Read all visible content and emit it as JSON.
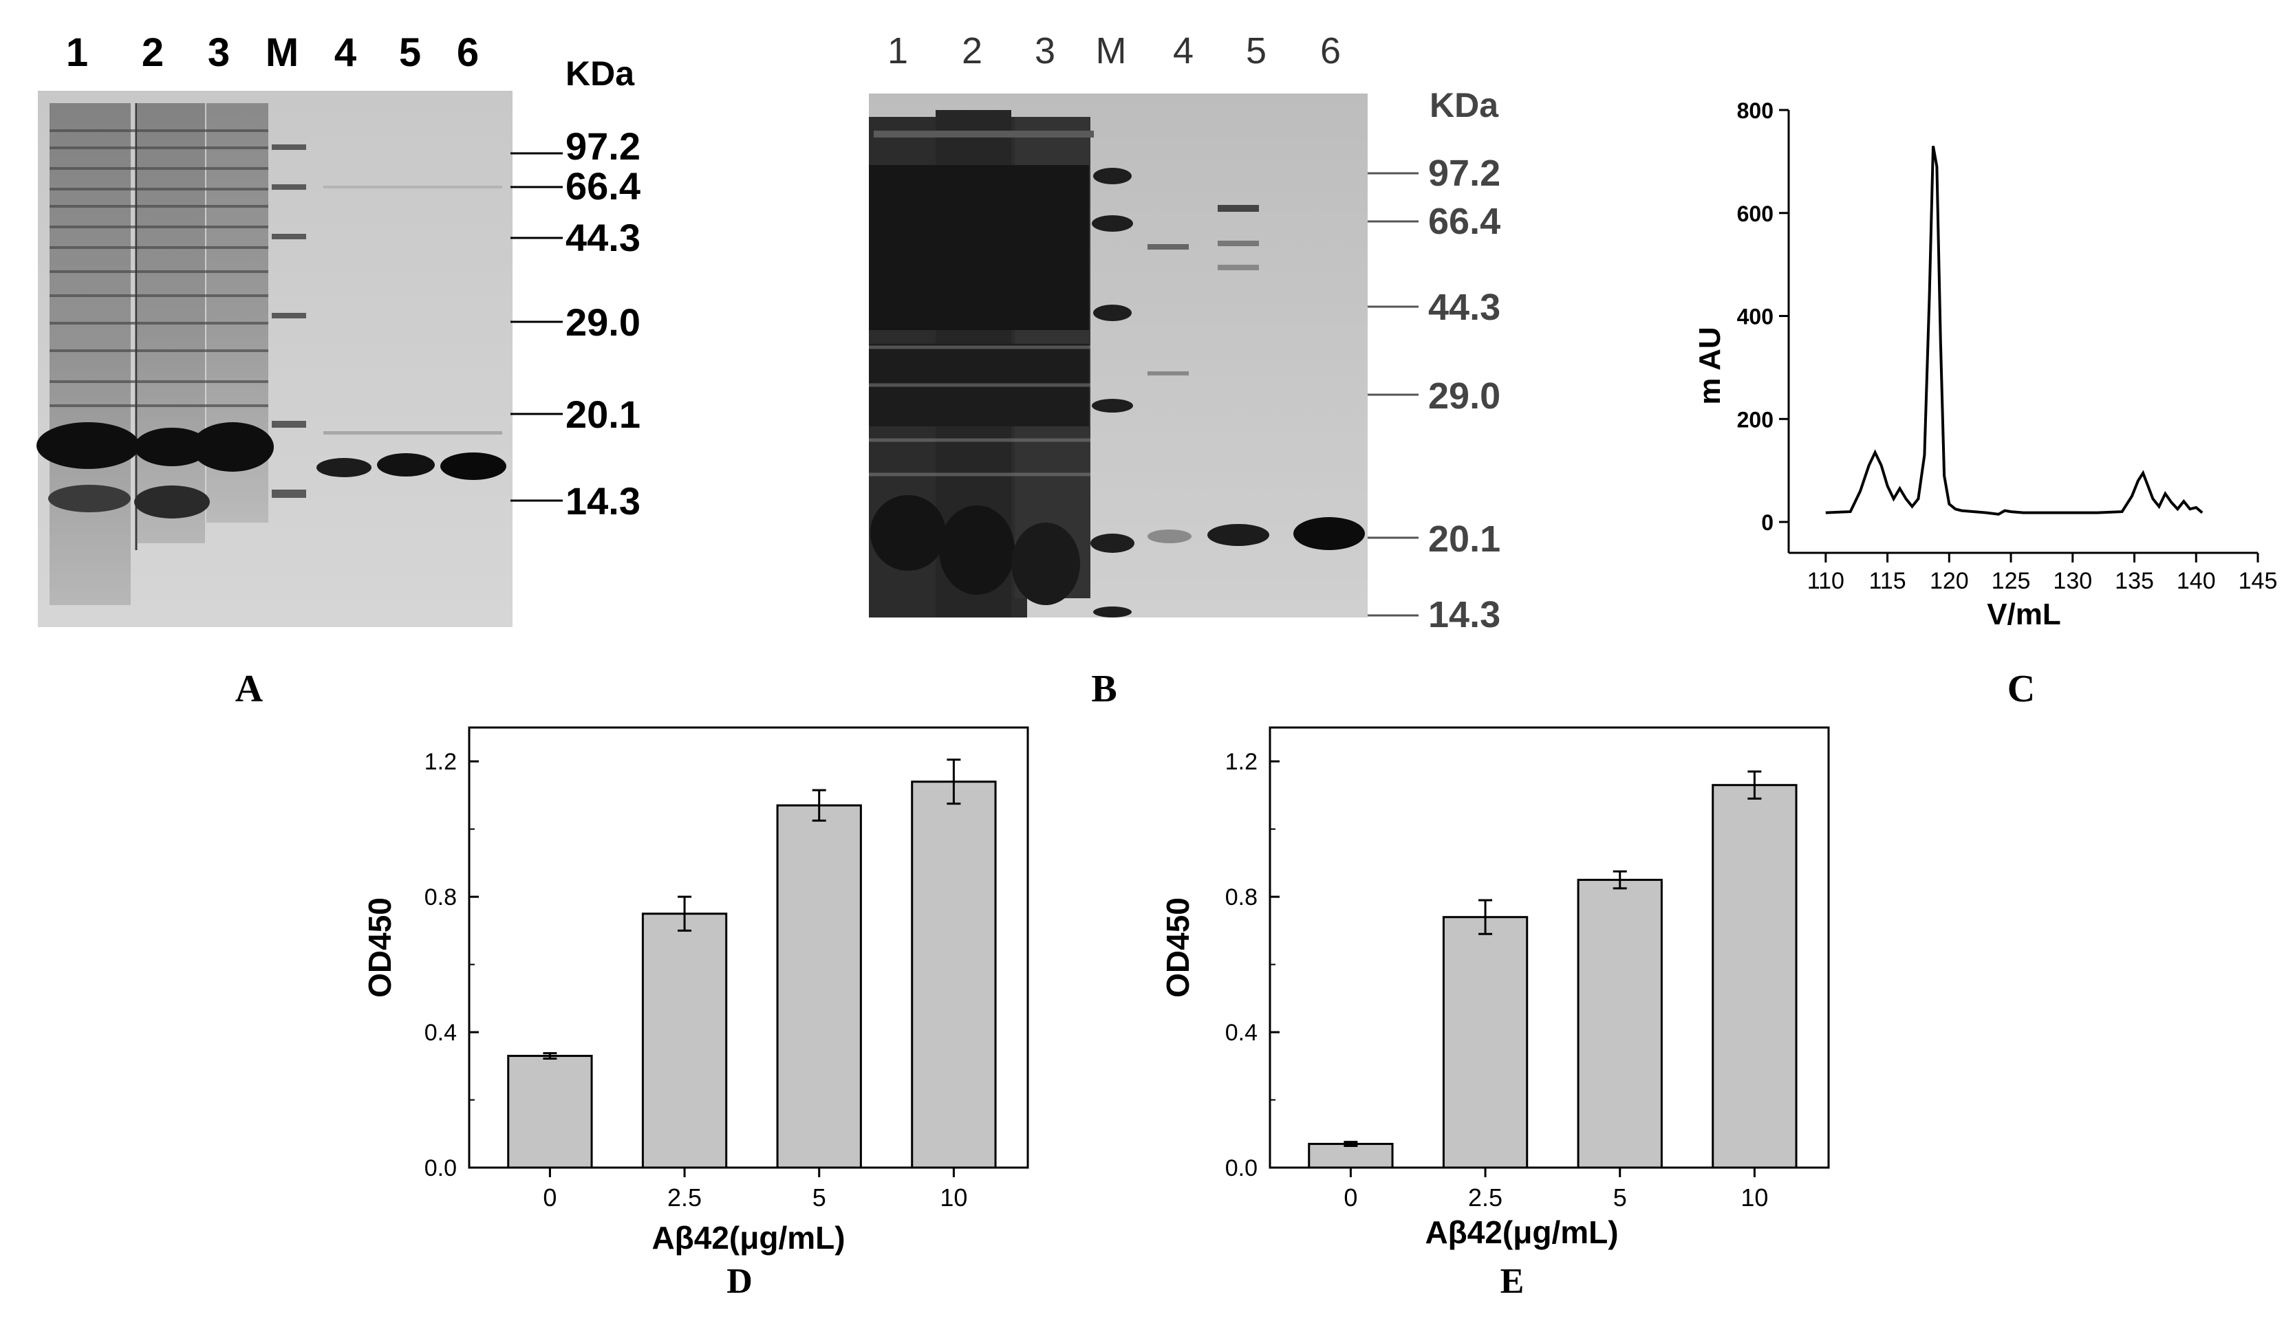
{
  "panels": {
    "A": {
      "caption": "A",
      "lane_labels": [
        "1",
        "2",
        "3",
        "M",
        "4",
        "5",
        "6"
      ],
      "unit_label": "KDa",
      "markers": [
        "97.2",
        "66.4",
        "44.3",
        "29.0",
        "20.1",
        "14.3"
      ]
    },
    "B": {
      "caption": "B",
      "lane_labels": [
        "1",
        "2",
        "3",
        "M",
        "4",
        "5",
        "6"
      ],
      "unit_label": "KDa",
      "markers": [
        "97.2",
        "66.4",
        "44.3",
        "29.0",
        "20.1",
        "14.3"
      ]
    },
    "C": {
      "caption": "C"
    },
    "D": {
      "caption": "D"
    },
    "E": {
      "caption": "E"
    }
  },
  "chart_data": [
    {
      "id": "C",
      "type": "line",
      "title": "",
      "xlabel": "V/mL",
      "ylabel": "m AU",
      "xlim": [
        107,
        145
      ],
      "ylim": [
        -60,
        800
      ],
      "xticks": [
        110,
        115,
        120,
        125,
        130,
        135,
        140,
        145
      ],
      "yticks": [
        0,
        200,
        400,
        600,
        800
      ],
      "series": [
        {
          "x": [
            110,
            112,
            112.8,
            113.5,
            114.0,
            114.5,
            115.0,
            115.5,
            116.0,
            116.5,
            117.0,
            117.5,
            118.0,
            118.4,
            118.7,
            119.0,
            119.3,
            119.6,
            120.0,
            120.5,
            121,
            122,
            123,
            124,
            124.5,
            125,
            126,
            128,
            130,
            132,
            134,
            134.8,
            135.3,
            135.7,
            136.1,
            136.5,
            137.0,
            137.5,
            138.0,
            138.5,
            139.0,
            139.5,
            140.0,
            140.5
          ],
          "y": [
            18,
            20,
            60,
            110,
            135,
            110,
            70,
            45,
            65,
            45,
            30,
            45,
            130,
            440,
            730,
            690,
            350,
            90,
            35,
            25,
            22,
            20,
            18,
            15,
            22,
            20,
            18,
            18,
            18,
            18,
            20,
            50,
            80,
            95,
            70,
            45,
            30,
            55,
            38,
            25,
            40,
            25,
            28,
            18
          ]
        }
      ]
    },
    {
      "id": "D",
      "type": "bar",
      "title": "",
      "xlabel": "Aβ42(μg/mL)",
      "ylabel": "OD450",
      "categories": [
        "0",
        "2.5",
        "5",
        "10"
      ],
      "values": [
        0.33,
        0.75,
        1.07,
        1.14
      ],
      "errors": [
        0.008,
        0.05,
        0.045,
        0.065
      ],
      "ylim": [
        0.0,
        1.3
      ],
      "yticks": [
        "0.0",
        "0.4",
        "0.8",
        "1.2"
      ]
    },
    {
      "id": "E",
      "type": "bar",
      "title": "",
      "xlabel": "Aβ42(μg/mL)",
      "ylabel": "OD450",
      "categories": [
        "0",
        "2.5",
        "5",
        "10"
      ],
      "values": [
        0.07,
        0.74,
        0.85,
        1.13
      ],
      "errors": [
        0.006,
        0.05,
        0.025,
        0.04
      ],
      "ylim": [
        0.0,
        1.3
      ],
      "yticks": [
        "0.0",
        "0.4",
        "0.8",
        "1.2"
      ]
    }
  ]
}
